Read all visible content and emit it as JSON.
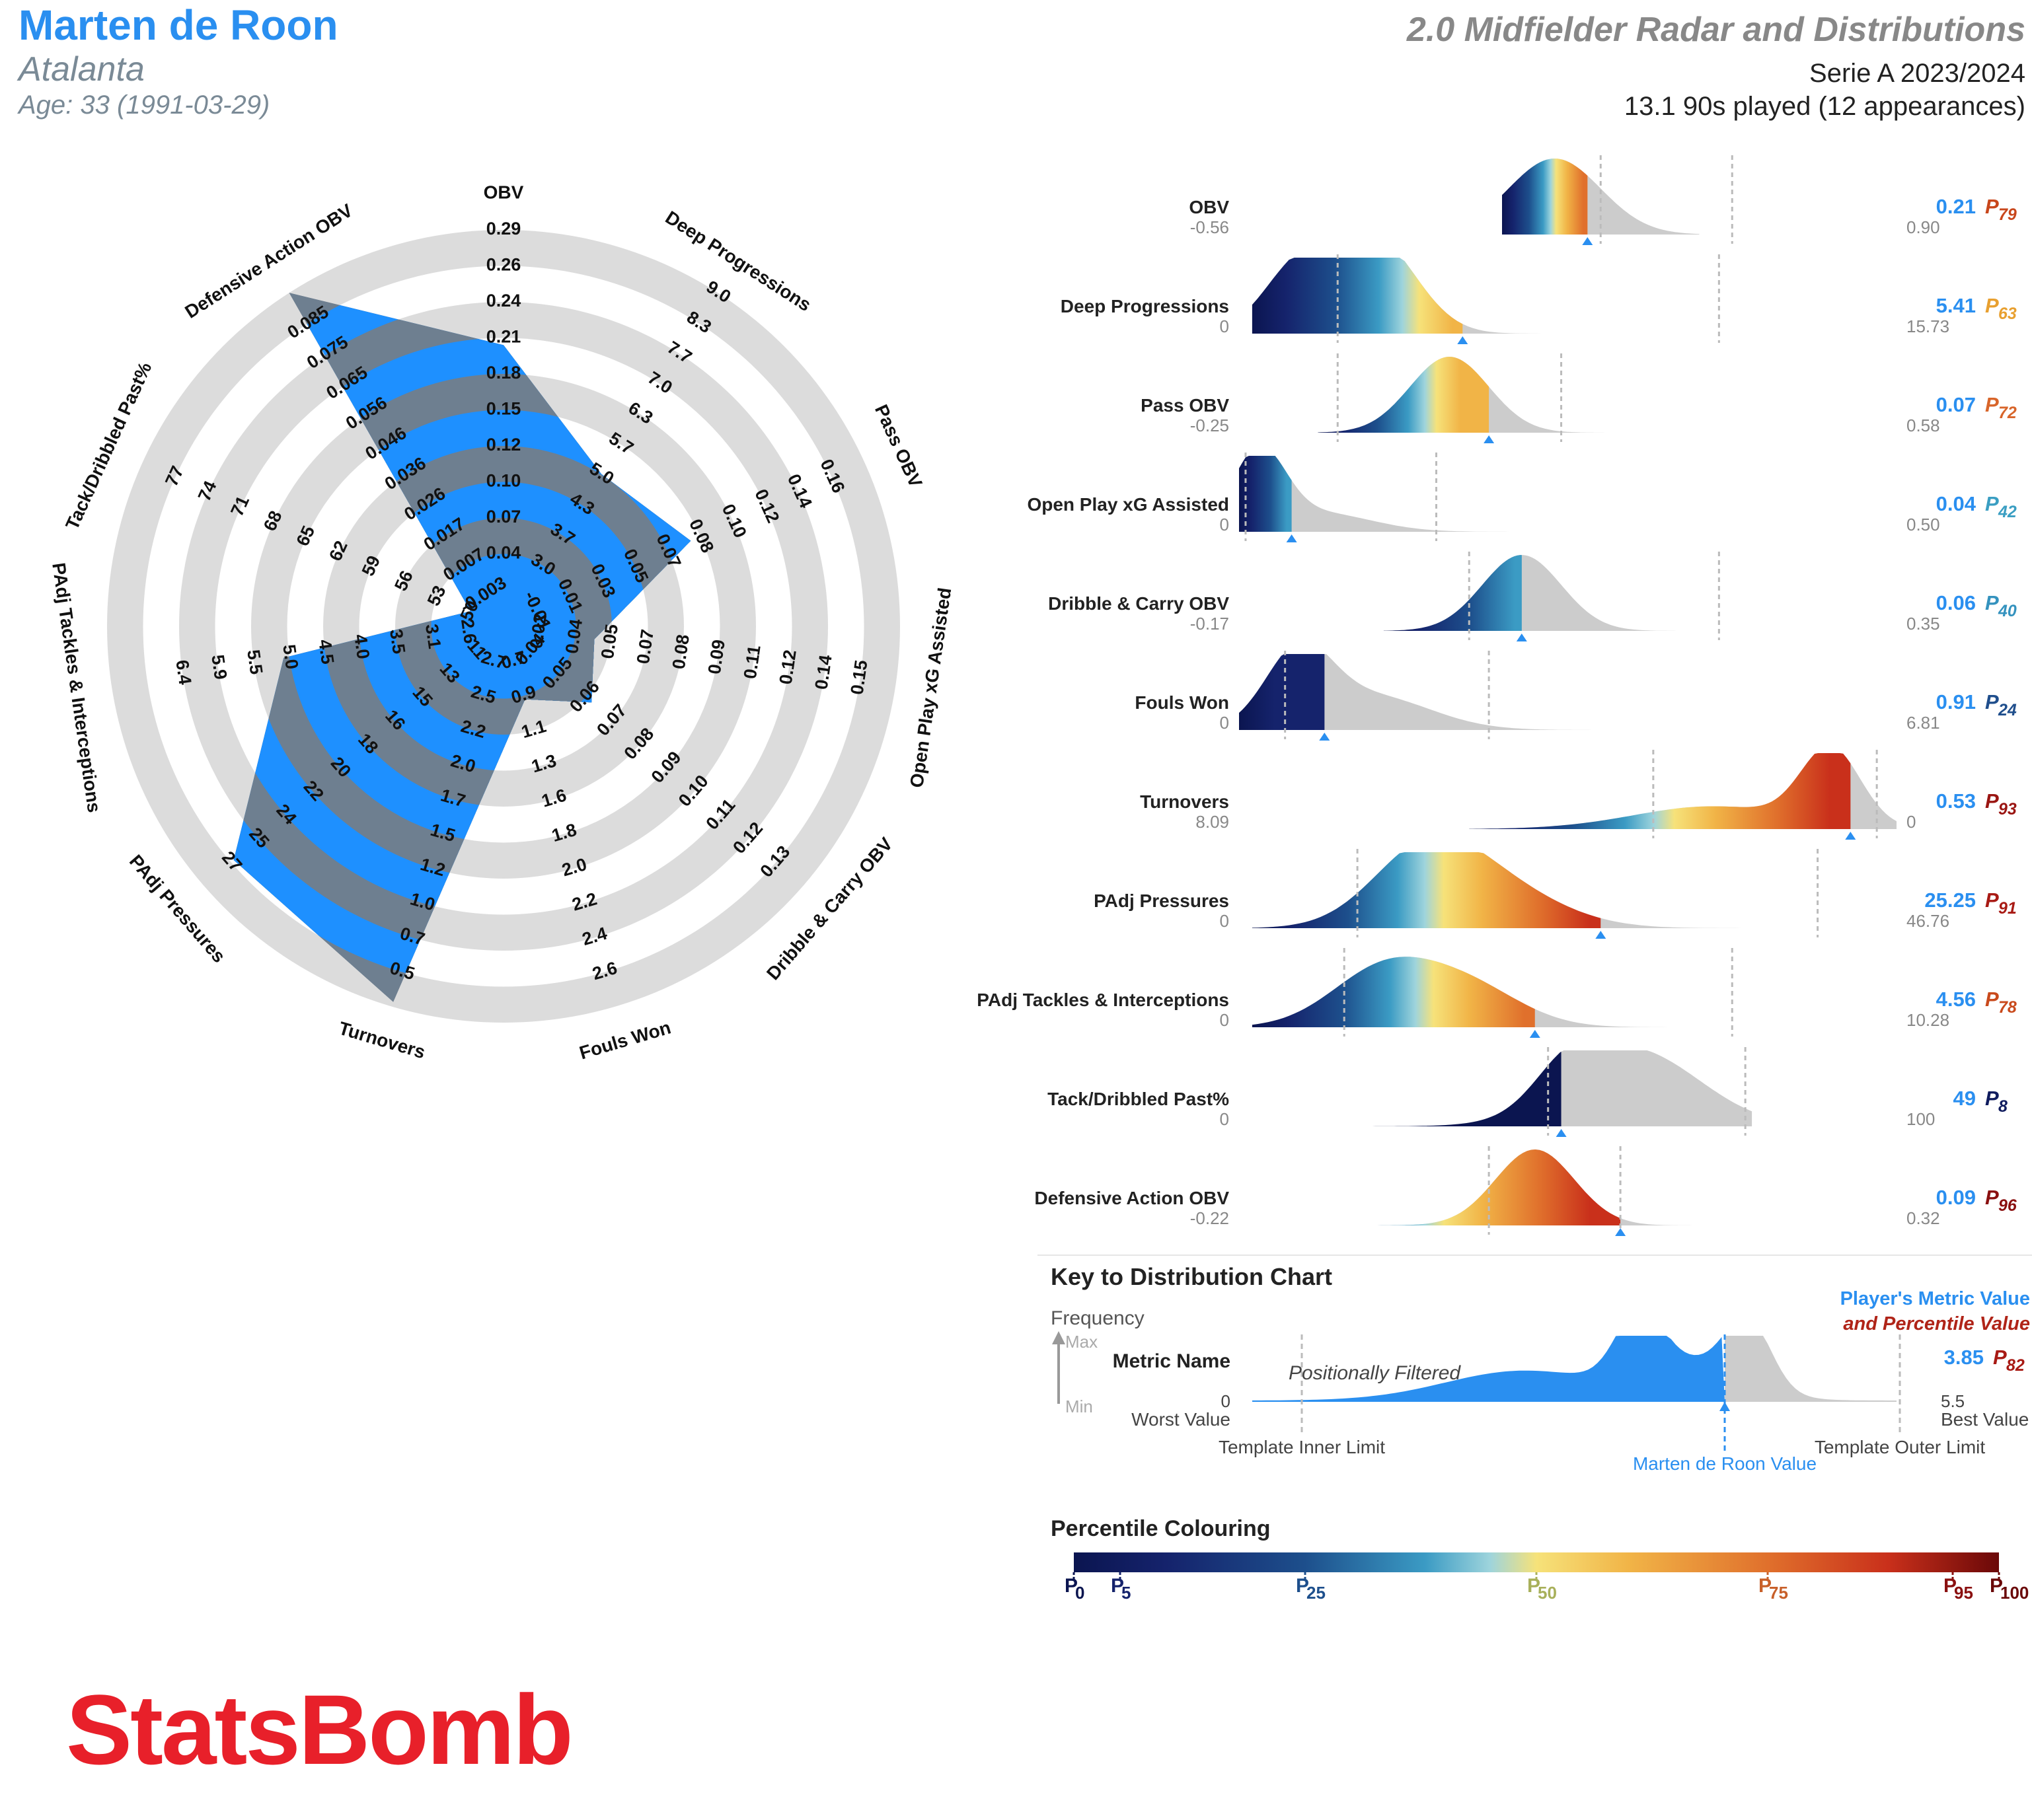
{
  "header": {
    "player_name": "Marten de Roon",
    "team": "Atalanta",
    "age_line": "Age: 33 (1991-03-29)",
    "template_title": "2.0 Midfielder Radar and Distributions",
    "competition": "Serie A 2023/2024",
    "minutes_line": "13.1 90s played (12 appearances)"
  },
  "colors": {
    "name_blue": "#2a8ff0",
    "muted_grey": "#7a8a96",
    "radar_player": "#1e90ff",
    "radar_template": "#6e7f90",
    "ring_grey": "#dcdcdc",
    "dist_grey": "#cccccc",
    "brand_red": "#e8202a"
  },
  "chart_data": {
    "type": "radar+distributions",
    "radar": {
      "axes": [
        {
          "name": "OBV",
          "ticks": [
            "0.04",
            "0.07",
            "0.10",
            "0.12",
            "0.15",
            "0.18",
            "0.21",
            "0.24",
            "0.26",
            "0.29"
          ],
          "player_value": 0.21,
          "template_min": 0.04,
          "template_max": 0.29
        },
        {
          "name": "Deep Progressions",
          "ticks": [
            "3.0",
            "3.7",
            "4.3",
            "5.0",
            "5.7",
            "6.3",
            "7.0",
            "7.7",
            "8.3",
            "9.0"
          ],
          "player_value": 5.41,
          "template_min": 3.0,
          "template_max": 9.0
        },
        {
          "name": "Pass OBV",
          "ticks": [
            "0.01",
            "0.03",
            "0.05",
            "0.07",
            "0.08",
            "0.10",
            "0.12",
            "0.14",
            "0.16"
          ],
          "tick_start": "-0.01",
          "player_value": 0.07,
          "template_min": -0.01,
          "template_max": 0.16
        },
        {
          "name": "Open Play xG Assisted",
          "ticks": [
            "0.04",
            "0.05",
            "0.07",
            "0.08",
            "0.09",
            "0.11",
            "0.12",
            "0.14",
            "0.15"
          ],
          "tick_start": "0.02",
          "player_value": 0.04,
          "template_min": 0.02,
          "template_max": 0.15
        },
        {
          "name": "Dribble & Carry OBV",
          "ticks": [
            "0.05",
            "0.06",
            "0.07",
            "0.08",
            "0.09",
            "0.10",
            "0.11",
            "0.12",
            "0.13"
          ],
          "tick_start": "0.04",
          "player_value": 0.06,
          "template_min": 0.04,
          "template_max": 0.13
        },
        {
          "name": "Fouls Won",
          "ticks": [
            "0.9",
            "1.1",
            "1.3",
            "1.6",
            "1.8",
            "2.0",
            "2.2",
            "2.4",
            "2.6"
          ],
          "tick_start": "0.7",
          "player_value": 0.91,
          "template_min": 0.7,
          "template_max": 2.6
        },
        {
          "name": "Turnovers",
          "ticks": [
            "2.5",
            "2.2",
            "2.0",
            "1.7",
            "1.5",
            "1.2",
            "1.0",
            "0.7",
            "0.5"
          ],
          "tick_start": "2.7",
          "player_value": 0.53,
          "template_min": 2.7,
          "template_max": 0.5
        },
        {
          "name": "PAdj Pressures",
          "ticks": [
            "13",
            "15",
            "16",
            "18",
            "20",
            "22",
            "24",
            "25",
            "27"
          ],
          "tick_start": "11",
          "player_value": 25.25,
          "template_min": 11,
          "template_max": 27
        },
        {
          "name": "PAdj Tackles & Interceptions",
          "ticks": [
            "3.1",
            "3.5",
            "4.0",
            "4.5",
            "5.0",
            "5.5",
            "5.9",
            "6.4"
          ],
          "tick_start": "2.6",
          "player_value": 4.56,
          "template_min": 2.6,
          "template_max": 6.4
        },
        {
          "name": "Tack/Dribbled Past%",
          "ticks": [
            "53",
            "56",
            "59",
            "62",
            "65",
            "68",
            "71",
            "74",
            "77"
          ],
          "tick_start": "50",
          "player_value": 49,
          "template_min": 50,
          "template_max": 77
        },
        {
          "name": "Defensive Action OBV",
          "ticks": [
            "0.007",
            "0.017",
            "0.026",
            "0.036",
            "0.046",
            "0.056",
            "0.065",
            "0.075",
            "0.085"
          ],
          "tick_start": "-0.003",
          "player_value": 0.09,
          "template_min": -0.003,
          "template_max": 0.085
        }
      ]
    },
    "distributions": [
      {
        "metric": "OBV",
        "left_label": "-0.56",
        "right_label": "0.90",
        "value": "0.21",
        "percentile": "79",
        "pct": 79,
        "pcolor": "#c8461b"
      },
      {
        "metric": "Deep Progressions",
        "left_label": "0",
        "right_label": "15.73",
        "value": "5.41",
        "percentile": "63",
        "pct": 63,
        "pcolor": "#e8a030"
      },
      {
        "metric": "Pass OBV",
        "left_label": "-0.25",
        "right_label": "0.58",
        "value": "0.07",
        "percentile": "72",
        "pct": 72,
        "pcolor": "#d8652a"
      },
      {
        "metric": "Open Play xG Assisted",
        "left_label": "0",
        "right_label": "0.50",
        "value": "0.04",
        "percentile": "42",
        "pct": 42,
        "pcolor": "#3a9ec2"
      },
      {
        "metric": "Dribble & Carry OBV",
        "left_label": "-0.17",
        "right_label": "0.35",
        "value": "0.06",
        "percentile": "40",
        "pct": 40,
        "pcolor": "#3492be"
      },
      {
        "metric": "Fouls Won",
        "left_label": "0",
        "right_label": "6.81",
        "value": "0.91",
        "percentile": "24",
        "pct": 24,
        "pcolor": "#1f4e8c"
      },
      {
        "metric": "Turnovers",
        "left_label": "8.09",
        "right_label": "0",
        "value": "0.53",
        "percentile": "93",
        "pct": 93,
        "pcolor": "#9a1512"
      },
      {
        "metric": "PAdj Pressures",
        "left_label": "0",
        "right_label": "46.76",
        "value": "25.25",
        "percentile": "91",
        "pct": 91,
        "pcolor": "#a81a14"
      },
      {
        "metric": "PAdj Tackles & Interceptions",
        "left_label": "0",
        "right_label": "10.28",
        "value": "4.56",
        "percentile": "78",
        "pct": 78,
        "pcolor": "#c94a1c"
      },
      {
        "metric": "Tack/Dribbled Past%",
        "left_label": "0",
        "right_label": "100",
        "value": "49",
        "percentile": "8",
        "pct": 8,
        "pcolor": "#101c5e"
      },
      {
        "metric": "Defensive Action OBV",
        "left_label": "-0.22",
        "right_label": "0.32",
        "value": "0.09",
        "percentile": "96",
        "pct": 96,
        "pcolor": "#8a1010"
      }
    ]
  },
  "key": {
    "title": "Key to Distribution Chart",
    "players_metric_value": "Player's Metric Value",
    "and_percentile_value": "and Percentile Value",
    "frequency": "Frequency",
    "max": "Max",
    "min": "Min",
    "metric_name": "Metric Name",
    "positionally_filtered": "Positionally Filtered",
    "zero": "0",
    "worst_value": "Worst Value",
    "best_num": "5.5",
    "best_value": "Best Value",
    "example_value": "3.85",
    "example_percentile": "82",
    "template_inner_limit": "Template Inner Limit",
    "template_outer_limit": "Template Outer Limit",
    "player_value_label": "Marten de Roon Value"
  },
  "percentile_colouring": {
    "title": "Percentile Colouring",
    "stops": [
      {
        "p": "0",
        "pos": 0
      },
      {
        "p": "5",
        "pos": 5
      },
      {
        "p": "25",
        "pos": 25
      },
      {
        "p": "50",
        "pos": 50
      },
      {
        "p": "75",
        "pos": 75
      },
      {
        "p": "95",
        "pos": 95
      },
      {
        "p": "100",
        "pos": 100
      }
    ],
    "prefix": "P"
  },
  "brand": {
    "logo_text": "StatsBomb"
  }
}
